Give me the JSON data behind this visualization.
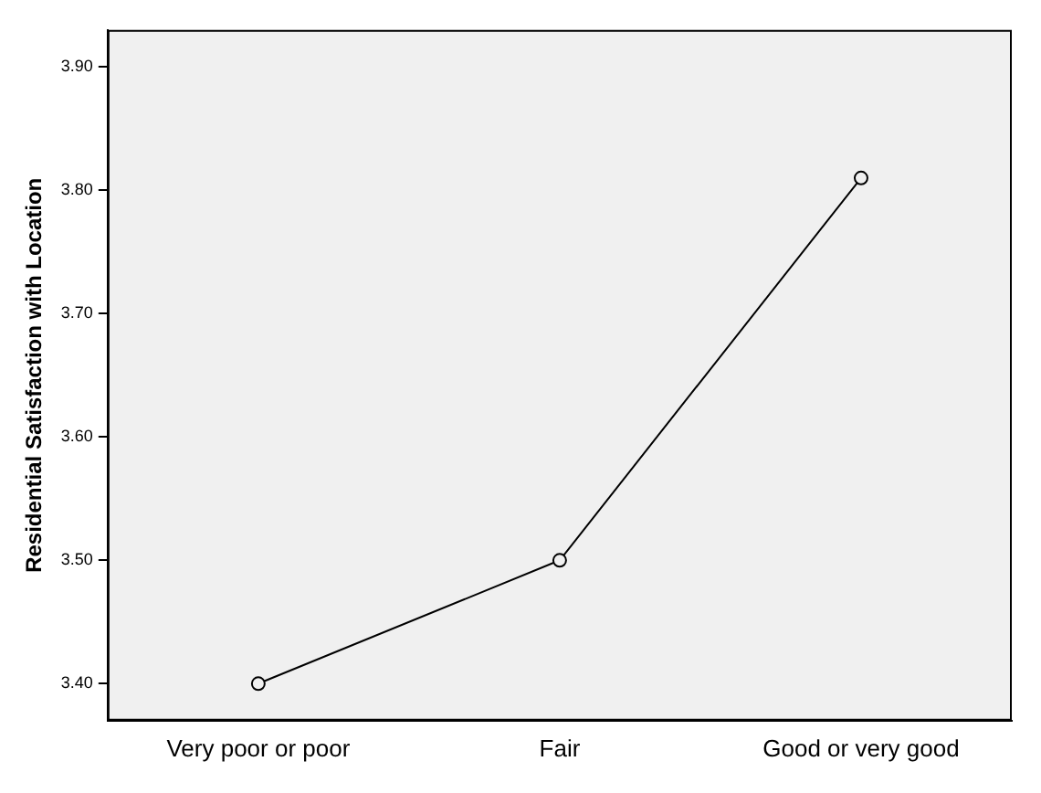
{
  "chart_data": {
    "type": "line",
    "ylabel": "Residential Satisfaction with Location",
    "categories": [
      "Very poor or poor",
      "Fair",
      "Good or very good"
    ],
    "series": [
      {
        "color": "#000000",
        "values": [
          3.4,
          3.5,
          3.81
        ]
      }
    ],
    "ylim": [
      3.37,
      3.93
    ],
    "yticks": [
      {
        "value": 3.4,
        "label": "3.40"
      },
      {
        "value": 3.5,
        "label": "3.50"
      },
      {
        "value": 3.6,
        "label": "3.60"
      },
      {
        "value": 3.7,
        "label": "3.70"
      },
      {
        "value": 3.8,
        "label": "3.80"
      },
      {
        "value": 3.9,
        "label": "3.90"
      }
    ],
    "grid": false,
    "legend": false,
    "marker": "circle",
    "line_style": "solid"
  }
}
